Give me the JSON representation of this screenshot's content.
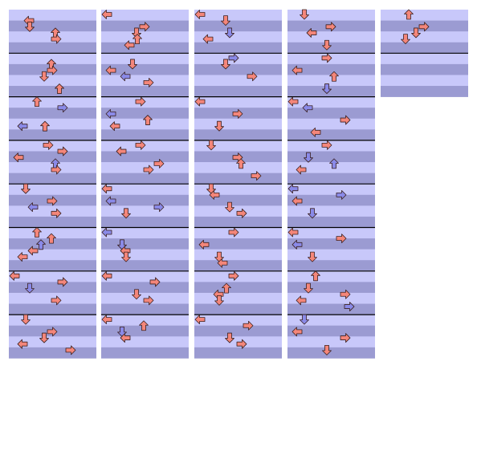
{
  "chart_data": {
    "type": "step-chart",
    "lanes": [
      "left",
      "down",
      "up",
      "right"
    ],
    "colors": {
      "band_light": "#c8c8fa",
      "band_dark": "#9b9bd2",
      "measure_line": "#000000",
      "arrow_red_fill": "#f4867a",
      "arrow_blue_fill": "#8a8ae8",
      "arrow_outline": "#3a2020"
    },
    "measures_per_column": 8,
    "rows_per_measure": 8,
    "columns": [
      {
        "notes": [
          [
            0,
            1,
            "left",
            "red"
          ],
          [
            0,
            2,
            "down",
            "red"
          ],
          [
            0,
            3,
            "up",
            "red"
          ],
          [
            0,
            4,
            "right",
            "red"
          ],
          [
            1,
            1,
            "up",
            "red"
          ],
          [
            1,
            2,
            "right",
            "red"
          ],
          [
            1,
            3,
            "down",
            "red"
          ],
          [
            1,
            5,
            "up",
            "red"
          ],
          [
            2,
            0,
            "up",
            "red"
          ],
          [
            2,
            1,
            "right",
            "blue"
          ],
          [
            2,
            4,
            "left",
            "blue"
          ],
          [
            2,
            4,
            "up",
            "red"
          ],
          [
            3,
            0,
            "right",
            "red"
          ],
          [
            3,
            1,
            "right",
            "red"
          ],
          [
            3,
            2,
            "left",
            "red"
          ],
          [
            3,
            3,
            "up",
            "blue"
          ],
          [
            3,
            4,
            "right",
            "red"
          ],
          [
            4,
            0,
            "down",
            "red"
          ],
          [
            4,
            2,
            "right",
            "red"
          ],
          [
            4,
            3,
            "left",
            "blue"
          ],
          [
            4,
            4,
            "right",
            "red"
          ],
          [
            5,
            0,
            "up",
            "red"
          ],
          [
            5,
            1,
            "up",
            "red"
          ],
          [
            5,
            2,
            "up",
            "blue"
          ],
          [
            5,
            3,
            "left",
            "red"
          ],
          [
            5,
            4,
            "left",
            "red"
          ],
          [
            6,
            0,
            "left",
            "red"
          ],
          [
            6,
            1,
            "right",
            "red"
          ],
          [
            6,
            2,
            "down",
            "blue"
          ],
          [
            6,
            4,
            "right",
            "red"
          ],
          [
            7,
            0,
            "down",
            "red"
          ],
          [
            7,
            2,
            "right",
            "red"
          ],
          [
            7,
            3,
            "down",
            "red"
          ],
          [
            7,
            4,
            "left",
            "red"
          ],
          [
            7,
            5,
            "right",
            "red"
          ]
        ]
      },
      {
        "notes": [
          [
            0,
            0,
            "left",
            "red"
          ],
          [
            0,
            2,
            "right",
            "red"
          ],
          [
            0,
            3,
            "down",
            "red"
          ],
          [
            0,
            4,
            "up",
            "red"
          ],
          [
            0,
            5,
            "left",
            "red"
          ],
          [
            1,
            1,
            "down",
            "red"
          ],
          [
            1,
            2,
            "left",
            "red"
          ],
          [
            1,
            3,
            "left",
            "blue"
          ],
          [
            1,
            4,
            "right",
            "red"
          ],
          [
            2,
            0,
            "right",
            "red"
          ],
          [
            2,
            2,
            "left",
            "blue"
          ],
          [
            2,
            3,
            "up",
            "red"
          ],
          [
            2,
            4,
            "left",
            "red"
          ],
          [
            3,
            0,
            "right",
            "red"
          ],
          [
            3,
            1,
            "left",
            "red"
          ],
          [
            3,
            3,
            "right",
            "red"
          ],
          [
            3,
            4,
            "right",
            "red"
          ],
          [
            4,
            0,
            "left",
            "red"
          ],
          [
            4,
            2,
            "left",
            "blue"
          ],
          [
            4,
            3,
            "right",
            "blue"
          ],
          [
            4,
            4,
            "down",
            "red"
          ],
          [
            5,
            0,
            "left",
            "blue"
          ],
          [
            5,
            2,
            "down",
            "blue"
          ],
          [
            5,
            3,
            "left",
            "red"
          ],
          [
            5,
            4,
            "down",
            "red"
          ],
          [
            6,
            0,
            "left",
            "red"
          ],
          [
            6,
            1,
            "right",
            "red"
          ],
          [
            6,
            3,
            "down",
            "red"
          ],
          [
            6,
            4,
            "right",
            "red"
          ],
          [
            7,
            0,
            "left",
            "red"
          ],
          [
            7,
            1,
            "up",
            "red"
          ],
          [
            7,
            2,
            "down",
            "blue"
          ],
          [
            7,
            3,
            "left",
            "red"
          ]
        ]
      },
      {
        "notes": [
          [
            0,
            0,
            "left",
            "red"
          ],
          [
            0,
            1,
            "down",
            "red"
          ],
          [
            0,
            3,
            "down",
            "blue"
          ],
          [
            0,
            4,
            "left",
            "red"
          ],
          [
            1,
            0,
            "right",
            "blue"
          ],
          [
            1,
            1,
            "down",
            "red"
          ],
          [
            1,
            3,
            "right",
            "red"
          ],
          [
            2,
            0,
            "left",
            "red"
          ],
          [
            2,
            2,
            "right",
            "red"
          ],
          [
            2,
            4,
            "down",
            "red"
          ],
          [
            3,
            0,
            "down",
            "red"
          ],
          [
            3,
            2,
            "right",
            "red"
          ],
          [
            3,
            3,
            "up",
            "red"
          ],
          [
            3,
            5,
            "right",
            "red"
          ],
          [
            4,
            0,
            "down",
            "red"
          ],
          [
            4,
            1,
            "left",
            "red"
          ],
          [
            4,
            3,
            "down",
            "red"
          ],
          [
            4,
            4,
            "right",
            "red"
          ],
          [
            5,
            0,
            "right",
            "red"
          ],
          [
            5,
            2,
            "left",
            "red"
          ],
          [
            5,
            4,
            "down",
            "red"
          ],
          [
            5,
            5,
            "left",
            "red"
          ],
          [
            6,
            0,
            "right",
            "red"
          ],
          [
            6,
            2,
            "up",
            "red"
          ],
          [
            6,
            3,
            "left",
            "red"
          ],
          [
            6,
            4,
            "down",
            "red"
          ],
          [
            7,
            0,
            "left",
            "red"
          ],
          [
            7,
            1,
            "right",
            "red"
          ],
          [
            7,
            3,
            "down",
            "red"
          ],
          [
            7,
            4,
            "right",
            "red"
          ]
        ]
      },
      {
        "notes": [
          [
            0,
            0,
            "down",
            "red"
          ],
          [
            0,
            2,
            "right",
            "red"
          ],
          [
            0,
            3,
            "left",
            "red"
          ],
          [
            0,
            5,
            "down",
            "red"
          ],
          [
            1,
            0,
            "right",
            "red"
          ],
          [
            1,
            2,
            "left",
            "red"
          ],
          [
            1,
            3,
            "up",
            "red"
          ],
          [
            1,
            5,
            "down",
            "blue"
          ],
          [
            2,
            0,
            "left",
            "red"
          ],
          [
            2,
            1,
            "left",
            "blue"
          ],
          [
            2,
            3,
            "right",
            "red"
          ],
          [
            2,
            5,
            "left",
            "red"
          ],
          [
            3,
            0,
            "right",
            "red"
          ],
          [
            3,
            2,
            "down",
            "blue"
          ],
          [
            3,
            3,
            "up",
            "blue"
          ],
          [
            3,
            4,
            "left",
            "red"
          ],
          [
            4,
            0,
            "left",
            "blue"
          ],
          [
            4,
            1,
            "right",
            "blue"
          ],
          [
            4,
            2,
            "left",
            "red"
          ],
          [
            4,
            4,
            "down",
            "blue"
          ],
          [
            5,
            0,
            "left",
            "red"
          ],
          [
            5,
            1,
            "right",
            "red"
          ],
          [
            5,
            2,
            "left",
            "blue"
          ],
          [
            5,
            4,
            "down",
            "red"
          ],
          [
            6,
            0,
            "up",
            "red"
          ],
          [
            6,
            2,
            "down",
            "red"
          ],
          [
            6,
            3,
            "right",
            "red"
          ],
          [
            6,
            4,
            "left",
            "red"
          ],
          [
            6,
            5,
            "right",
            "blue"
          ],
          [
            7,
            0,
            "down",
            "blue"
          ],
          [
            7,
            2,
            "left",
            "red"
          ],
          [
            7,
            3,
            "right",
            "red"
          ],
          [
            7,
            5,
            "down",
            "red"
          ]
        ]
      },
      {
        "notes": [
          [
            0,
            0,
            "up",
            "red"
          ],
          [
            0,
            2,
            "right",
            "red"
          ],
          [
            0,
            3,
            "down",
            "red"
          ],
          [
            0,
            4,
            "down",
            "red"
          ]
        ]
      }
    ],
    "last_column_measures": 2
  }
}
